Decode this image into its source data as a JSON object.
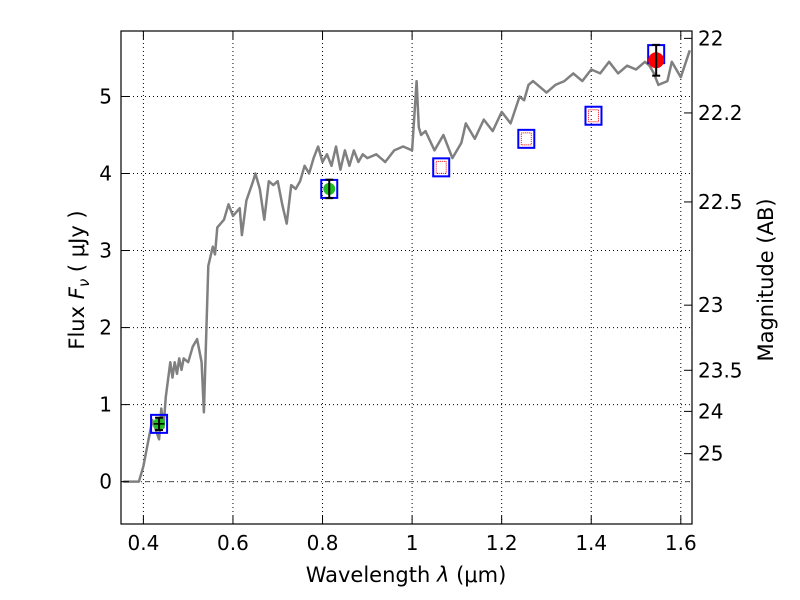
{
  "chart_data": {
    "type": "line",
    "title": "",
    "xlabel_prefix": "Wavelength",
    "xlabel_symbol": "λ",
    "xlabel_unit": "(μm)",
    "ylabel_prefix": "Flux",
    "ylabel_symbol": "F",
    "ylabel_subscript": "ν",
    "ylabel_unit": "( μJy )",
    "y2label": "Magnitude (AB)",
    "xlim": [
      0.35,
      1.625
    ],
    "ylim": [
      -0.55,
      5.85
    ],
    "grid": true,
    "x_ticks": [
      0.4,
      0.6,
      0.8,
      1.0,
      1.2,
      1.4,
      1.6
    ],
    "x_tick_labels": [
      "0.4",
      "0.6",
      "0.8",
      "1",
      "1.2",
      "1.4",
      "1.6"
    ],
    "y_ticks": [
      0,
      1,
      2,
      3,
      4,
      5
    ],
    "y_tick_labels": [
      "0",
      "1",
      "2",
      "3",
      "4",
      "5"
    ],
    "mag_ticks": [
      22,
      22.2,
      22.5,
      23,
      23.5,
      24,
      25
    ],
    "mag_tick_labels": [
      "22",
      "22.2",
      "22.5",
      "23",
      "23.5",
      "24",
      "25"
    ],
    "zero_line": true,
    "colors": {
      "template": "#808080",
      "model_box": "#0000ff",
      "green_point": "#22bb22",
      "red_point": "#ff0000",
      "grid": "#000000",
      "zero_line": "#555555"
    },
    "series": [
      {
        "name": "template spectrum",
        "x": [
          0.355,
          0.39,
          0.4,
          0.42,
          0.435,
          0.44,
          0.445,
          0.45,
          0.46,
          0.465,
          0.47,
          0.475,
          0.48,
          0.485,
          0.49,
          0.5,
          0.51,
          0.52,
          0.53,
          0.535,
          0.545,
          0.555,
          0.56,
          0.565,
          0.58,
          0.59,
          0.6,
          0.615,
          0.62,
          0.63,
          0.645,
          0.65,
          0.66,
          0.67,
          0.68,
          0.69,
          0.7,
          0.71,
          0.72,
          0.73,
          0.74,
          0.75,
          0.76,
          0.77,
          0.78,
          0.79,
          0.8,
          0.81,
          0.82,
          0.83,
          0.84,
          0.85,
          0.86,
          0.87,
          0.88,
          0.89,
          0.9,
          0.92,
          0.94,
          0.96,
          0.98,
          1.0,
          1.01,
          1.015,
          1.02,
          1.03,
          1.05,
          1.07,
          1.09,
          1.11,
          1.12,
          1.14,
          1.16,
          1.18,
          1.2,
          1.22,
          1.24,
          1.25,
          1.26,
          1.27,
          1.3,
          1.32,
          1.34,
          1.36,
          1.38,
          1.4,
          1.42,
          1.44,
          1.46,
          1.48,
          1.5,
          1.52,
          1.53,
          1.54,
          1.55,
          1.57,
          1.58,
          1.6,
          1.62
        ],
        "y": [
          0.0,
          0.0,
          0.2,
          0.8,
          0.55,
          0.95,
          0.7,
          1.1,
          1.55,
          1.35,
          1.55,
          1.4,
          1.6,
          1.45,
          1.6,
          1.55,
          1.75,
          1.85,
          1.55,
          0.9,
          2.8,
          3.05,
          2.95,
          3.3,
          3.4,
          3.6,
          3.45,
          3.55,
          3.2,
          3.65,
          3.9,
          4.0,
          3.8,
          3.4,
          3.9,
          3.85,
          3.9,
          3.6,
          3.35,
          3.85,
          3.8,
          3.9,
          4.1,
          4.0,
          4.2,
          4.35,
          4.15,
          4.25,
          4.1,
          4.35,
          4.05,
          4.3,
          4.1,
          4.3,
          4.15,
          4.25,
          4.2,
          4.25,
          4.15,
          4.3,
          4.35,
          4.3,
          5.2,
          4.6,
          4.5,
          4.55,
          4.3,
          4.5,
          4.2,
          4.4,
          4.65,
          4.45,
          4.7,
          4.55,
          4.8,
          4.65,
          5.0,
          4.95,
          5.15,
          5.2,
          5.05,
          5.15,
          5.2,
          5.3,
          5.2,
          5.35,
          5.3,
          5.45,
          5.3,
          5.4,
          5.35,
          5.45,
          5.4,
          5.3,
          5.15,
          5.2,
          5.45,
          5.25,
          5.6
        ]
      }
    ],
    "model_boxes": {
      "x": [
        0.435,
        0.815,
        1.065,
        1.255,
        1.405,
        1.545
      ],
      "y": [
        0.75,
        3.8,
        4.08,
        4.45,
        4.75,
        5.55
      ]
    },
    "observed_points": [
      {
        "name": "green",
        "x": [
          0.435,
          0.815
        ],
        "y": [
          0.75,
          3.8
        ],
        "yerr": [
          0.08,
          0.12
        ],
        "xerr": [
          0.012,
          0.0
        ]
      },
      {
        "name": "red",
        "x": [
          1.545
        ],
        "y": [
          5.47
        ],
        "yerr": [
          0.2
        ],
        "xerr": [
          0.0
        ]
      }
    ]
  }
}
